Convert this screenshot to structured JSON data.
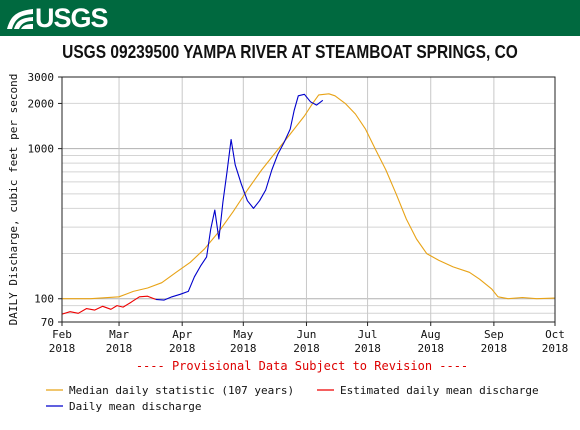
{
  "header": {
    "logo_text": "USGS",
    "accent_color": "#00693f"
  },
  "chart_data": {
    "type": "line",
    "title": "USGS 09239500 YAMPA RIVER AT STEAMBOAT SPRINGS, CO",
    "ylabel": "DAILY Discharge, cubic feet per second",
    "xlabel": "",
    "y_scale": "log",
    "ylim": [
      70,
      3000
    ],
    "xlim": [
      "2018-02-01",
      "2018-10-01"
    ],
    "grid": true,
    "y_ticks": [
      70,
      100,
      1000,
      2000,
      3000
    ],
    "x_ticks": [
      {
        "date": "2018-02-01",
        "month": "Feb",
        "year": "2018"
      },
      {
        "date": "2018-03-01",
        "month": "Mar",
        "year": "2018"
      },
      {
        "date": "2018-04-01",
        "month": "Apr",
        "year": "2018"
      },
      {
        "date": "2018-05-01",
        "month": "May",
        "year": "2018"
      },
      {
        "date": "2018-06-01",
        "month": "Jun",
        "year": "2018"
      },
      {
        "date": "2018-07-01",
        "month": "Jul",
        "year": "2018"
      },
      {
        "date": "2018-08-01",
        "month": "Aug",
        "year": "2018"
      },
      {
        "date": "2018-09-01",
        "month": "Sep",
        "year": "2018"
      },
      {
        "date": "2018-10-01",
        "month": "Oct",
        "year": "2018"
      }
    ],
    "annotation": "---- Provisional Data Subject to Revision ----",
    "annotation_color": "#dd0000",
    "legend_placement": "bottom",
    "series": [
      {
        "name": "Median daily statistic (107 years)",
        "color": "#e8a317",
        "points": [
          [
            "2018-02-01",
            100
          ],
          [
            "2018-02-15",
            100
          ],
          [
            "2018-03-01",
            103
          ],
          [
            "2018-03-08",
            112
          ],
          [
            "2018-03-15",
            118
          ],
          [
            "2018-03-22",
            128
          ],
          [
            "2018-03-29",
            150
          ],
          [
            "2018-04-05",
            175
          ],
          [
            "2018-04-12",
            215
          ],
          [
            "2018-04-19",
            280
          ],
          [
            "2018-04-26",
            380
          ],
          [
            "2018-05-03",
            530
          ],
          [
            "2018-05-10",
            720
          ],
          [
            "2018-05-17",
            950
          ],
          [
            "2018-05-24",
            1250
          ],
          [
            "2018-05-31",
            1650
          ],
          [
            "2018-06-04",
            2000
          ],
          [
            "2018-06-07",
            2280
          ],
          [
            "2018-06-12",
            2320
          ],
          [
            "2018-06-15",
            2250
          ],
          [
            "2018-06-20",
            2000
          ],
          [
            "2018-06-25",
            1700
          ],
          [
            "2018-06-30",
            1350
          ],
          [
            "2018-07-05",
            980
          ],
          [
            "2018-07-10",
            720
          ],
          [
            "2018-07-15",
            500
          ],
          [
            "2018-07-20",
            340
          ],
          [
            "2018-07-25",
            250
          ],
          [
            "2018-07-30",
            200
          ],
          [
            "2018-08-05",
            180
          ],
          [
            "2018-08-12",
            163
          ],
          [
            "2018-08-20",
            150
          ],
          [
            "2018-08-25",
            135
          ],
          [
            "2018-08-31",
            116
          ],
          [
            "2018-09-03",
            103
          ],
          [
            "2018-09-08",
            100
          ],
          [
            "2018-09-15",
            102
          ],
          [
            "2018-09-22",
            100
          ],
          [
            "2018-10-01",
            101
          ]
        ]
      },
      {
        "name": "Estimated daily mean discharge",
        "color": "#ee0000",
        "points": [
          [
            "2018-02-01",
            79
          ],
          [
            "2018-02-05",
            82
          ],
          [
            "2018-02-09",
            80
          ],
          [
            "2018-02-13",
            86
          ],
          [
            "2018-02-17",
            84
          ],
          [
            "2018-02-21",
            89
          ],
          [
            "2018-02-25",
            85
          ],
          [
            "2018-02-28",
            90
          ],
          [
            "2018-03-03",
            88
          ],
          [
            "2018-03-07",
            95
          ],
          [
            "2018-03-11",
            103
          ],
          [
            "2018-03-15",
            104
          ],
          [
            "2018-03-19",
            99
          ]
        ]
      },
      {
        "name": "Daily mean discharge",
        "color": "#0000cc",
        "points": [
          [
            "2018-03-19",
            99
          ],
          [
            "2018-03-23",
            98
          ],
          [
            "2018-03-27",
            103
          ],
          [
            "2018-03-31",
            107
          ],
          [
            "2018-04-04",
            112
          ],
          [
            "2018-04-07",
            140
          ],
          [
            "2018-04-10",
            165
          ],
          [
            "2018-04-13",
            190
          ],
          [
            "2018-04-15",
            290
          ],
          [
            "2018-04-17",
            390
          ],
          [
            "2018-04-19",
            250
          ],
          [
            "2018-04-21",
            440
          ],
          [
            "2018-04-23",
            700
          ],
          [
            "2018-04-25",
            1150
          ],
          [
            "2018-04-27",
            780
          ],
          [
            "2018-04-30",
            580
          ],
          [
            "2018-05-03",
            450
          ],
          [
            "2018-05-06",
            400
          ],
          [
            "2018-05-09",
            450
          ],
          [
            "2018-05-12",
            530
          ],
          [
            "2018-05-15",
            720
          ],
          [
            "2018-05-18",
            920
          ],
          [
            "2018-05-21",
            1100
          ],
          [
            "2018-05-24",
            1350
          ],
          [
            "2018-05-26",
            1800
          ],
          [
            "2018-05-28",
            2250
          ],
          [
            "2018-05-31",
            2300
          ],
          [
            "2018-06-03",
            2050
          ],
          [
            "2018-06-06",
            1950
          ],
          [
            "2018-06-09",
            2100
          ]
        ]
      }
    ]
  }
}
